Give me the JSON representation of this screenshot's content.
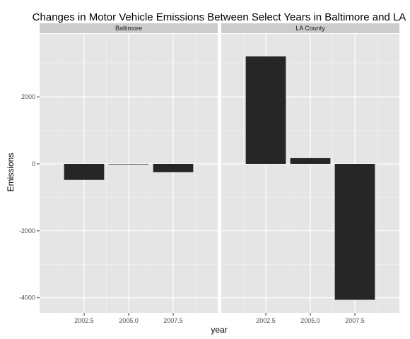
{
  "chart_data": {
    "type": "bar",
    "title": "Changes in Motor Vehicle Emissions Between Select Years in Baltimore and LA",
    "xlabel": "year",
    "ylabel": "Emissions",
    "ylim": [
      -4450,
      3880
    ],
    "xlim": [
      2000,
      2010
    ],
    "yticks": [
      -4000,
      -2000,
      0,
      2000
    ],
    "ytick_labels": [
      "-4000",
      "-2000",
      "0",
      "2000"
    ],
    "xticks": [
      2002.5,
      2005.0,
      2007.5
    ],
    "xtick_labels": [
      "2002.5",
      "2005.0",
      "2007.5"
    ],
    "grid": true,
    "facets": [
      {
        "label": "Baltimore",
        "x": [
          2002.5,
          2005.0,
          2007.5
        ],
        "values": [
          -480,
          -10,
          -250
        ]
      },
      {
        "label": "LA County",
        "x": [
          2002.5,
          2005.0,
          2007.5
        ],
        "values": [
          3210,
          170,
          -4060
        ]
      }
    ],
    "colors": {
      "bar": "#262626",
      "panel": "#e5e5e5",
      "strip": "#cccccc",
      "grid_major": "#ffffff",
      "grid_minor": "#f2f2f2"
    }
  }
}
